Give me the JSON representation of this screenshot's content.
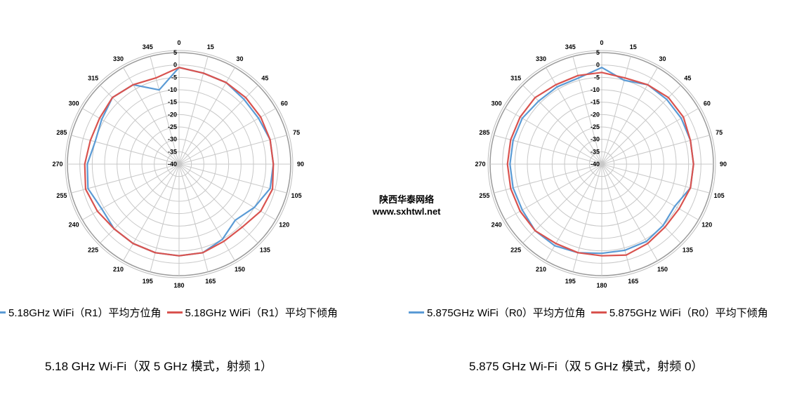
{
  "watermark": {
    "line1": "陕西华泰网络",
    "line2": "www.sxhtwl.net"
  },
  "charts": [
    {
      "legend": [
        {
          "label": "5.18GHz WiFi（R1）平均方位角",
          "color": "#5b9bd5"
        },
        {
          "label": "5.18GHz WiFi（R1）平均下倾角",
          "color": "#d9534f"
        }
      ],
      "caption": "5.18 GHz Wi-Fi（双 5 GHz 模式，射频 1）"
    },
    {
      "legend": [
        {
          "label": "5.875GHz WiFi（R0）平均方位角",
          "color": "#5b9bd5"
        },
        {
          "label": "5.875GHz WiFi（R0）平均下倾角",
          "color": "#d9534f"
        }
      ],
      "caption": "5.875  GHz Wi-Fi（双 5 GHz 模式，射频 0）"
    }
  ],
  "chart_data": [
    {
      "type": "polar-line",
      "angle_labels": [
        "0",
        "15",
        "30",
        "45",
        "60",
        "75",
        "90",
        "105",
        "120",
        "135",
        "150",
        "165",
        "180",
        "195",
        "210",
        "225",
        "240",
        "255",
        "270",
        "285",
        "300",
        "315",
        "330",
        "345"
      ],
      "radial_ticks": [
        5,
        0,
        -5,
        -10,
        -15,
        -20,
        -25,
        -30,
        -35,
        -40
      ],
      "rlim": [
        -40,
        5
      ],
      "grid": true,
      "series": [
        {
          "name": "5.18GHz WiFi（R1）平均方位角",
          "color": "#5b9bd5",
          "angles": [
            0,
            15,
            30,
            45,
            60,
            75,
            90,
            105,
            120,
            135,
            150,
            165,
            180,
            195,
            210,
            225,
            240,
            255,
            270,
            285,
            300,
            315,
            330,
            345
          ],
          "values": [
            -1,
            -2,
            -2,
            -3,
            -3,
            -2,
            -2,
            -2,
            -5,
            -8,
            -5,
            -3,
            -3,
            -3,
            -3,
            -3,
            -4,
            -2,
            -3,
            -5,
            -4,
            -2,
            -3,
            -9
          ]
        },
        {
          "name": "5.18GHz WiFi（R1）平均下倾角",
          "color": "#d9534f",
          "angles": [
            0,
            15,
            30,
            45,
            60,
            75,
            90,
            105,
            120,
            135,
            150,
            165,
            180,
            195,
            210,
            225,
            240,
            255,
            270,
            285,
            300,
            315,
            330,
            345
          ],
          "values": [
            -1,
            -2,
            -2,
            -2,
            -2,
            -2,
            -2,
            -1,
            -2,
            -4,
            -4,
            -3,
            -3,
            -3,
            -3,
            -3,
            -2,
            -1,
            -2,
            -3,
            -3,
            -2,
            -3,
            -4
          ]
        }
      ]
    },
    {
      "type": "polar-line",
      "angle_labels": [
        "0",
        "15",
        "30",
        "45",
        "60",
        "75",
        "90",
        "105",
        "120",
        "135",
        "150",
        "165",
        "180",
        "195",
        "210",
        "225",
        "240",
        "255",
        "270",
        "285",
        "300",
        "315",
        "330",
        "345"
      ],
      "radial_ticks": [
        5,
        0,
        -5,
        -10,
        -15,
        -20,
        -25,
        -30,
        -35,
        -40
      ],
      "rlim": [
        -40,
        5
      ],
      "grid": true,
      "series": [
        {
          "name": "5.875GHz WiFi（R0）平均方位角",
          "color": "#5b9bd5",
          "angles": [
            0,
            15,
            30,
            45,
            60,
            75,
            90,
            105,
            120,
            135,
            150,
            165,
            180,
            195,
            210,
            225,
            240,
            255,
            270,
            285,
            300,
            315,
            330,
            345
          ],
          "values": [
            -1,
            -5,
            -3,
            -3,
            -3,
            -3,
            -3,
            -3,
            -6,
            -5,
            -4,
            -4,
            -4,
            -3,
            -2,
            -2,
            -3,
            -3,
            -3,
            -3,
            -3,
            -4,
            -4,
            -4
          ]
        },
        {
          "name": "5.875GHz WiFi（R0）平均下倾角",
          "color": "#d9534f",
          "angles": [
            0,
            15,
            30,
            45,
            60,
            75,
            90,
            105,
            120,
            135,
            150,
            165,
            180,
            195,
            210,
            225,
            240,
            255,
            270,
            285,
            300,
            315,
            330,
            345
          ],
          "values": [
            -3,
            -4,
            -3,
            -2,
            -2,
            -3,
            -3,
            -3,
            -4,
            -4,
            -3,
            -2,
            -3,
            -3,
            -3,
            -2,
            -2,
            -2,
            -2,
            -2,
            -2,
            -2,
            -3,
            -3
          ]
        }
      ]
    }
  ]
}
